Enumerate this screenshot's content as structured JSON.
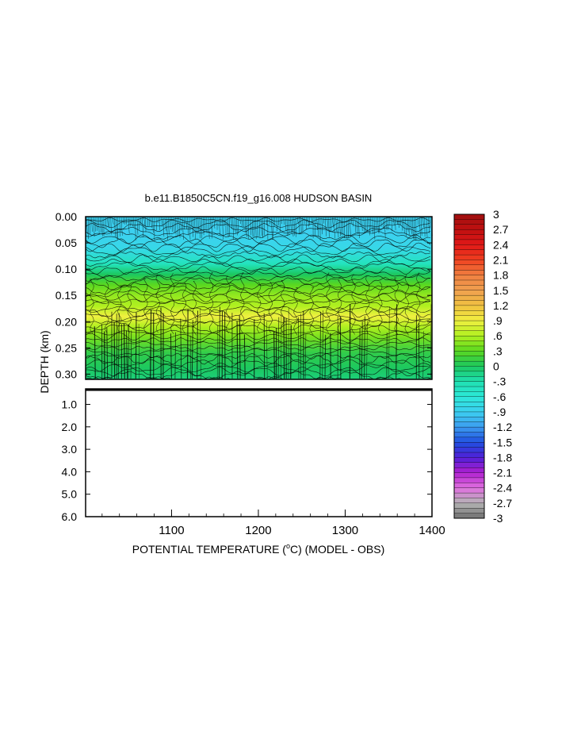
{
  "chart_data": {
    "type": "heatmap",
    "title": "b.e11.B1850C5CN.f19_g16.008 HUDSON BASIN",
    "xlabel_pre": "POTENTIAL TEMPERATURE (",
    "xlabel_sup": "o",
    "xlabel_post": "C) (MODEL - OBS)",
    "ylabel": "DEPTH (km)",
    "xlim": [
      1001,
      1400
    ],
    "x_ticks": [
      "1100",
      "1200",
      "1300",
      "1400"
    ],
    "x_tick_values": [
      1100,
      1200,
      1300,
      1400
    ],
    "upper_panel": {
      "ylim": [
        0.0,
        0.31
      ],
      "y_ticks": [
        "0.00",
        "0.05",
        "0.10",
        "0.15",
        "0.20",
        "0.25",
        "0.30"
      ],
      "y_tick_values": [
        0.0,
        0.05,
        0.1,
        0.15,
        0.2,
        0.25,
        0.3
      ]
    },
    "lower_panel": {
      "ylim": [
        0.31,
        6.0
      ],
      "y_ticks": [
        "1.0",
        "2.0",
        "3.0",
        "4.0",
        "5.0",
        "6.0"
      ],
      "y_tick_values": [
        1.0,
        2.0,
        3.0,
        4.0,
        5.0,
        6.0
      ]
    },
    "depth_profile": [
      {
        "depth": 0.0,
        "value": -0.9
      },
      {
        "depth": 0.03,
        "value": -0.9
      },
      {
        "depth": 0.06,
        "value": -0.8
      },
      {
        "depth": 0.09,
        "value": -0.4
      },
      {
        "depth": 0.11,
        "value": 0.0
      },
      {
        "depth": 0.13,
        "value": 0.3
      },
      {
        "depth": 0.15,
        "value": 0.5
      },
      {
        "depth": 0.17,
        "value": 0.6
      },
      {
        "depth": 0.19,
        "value": 0.9
      },
      {
        "depth": 0.21,
        "value": 0.6
      },
      {
        "depth": 0.23,
        "value": 0.4
      },
      {
        "depth": 0.26,
        "value": 0.1
      },
      {
        "depth": 0.29,
        "value": 0.0
      },
      {
        "depth": 0.31,
        "value": -0.1
      }
    ],
    "colorbar": {
      "min": -3,
      "max": 3,
      "labels": [
        "3",
        "2.7",
        "2.4",
        "2.1",
        "1.8",
        "1.5",
        "1.2",
        ".9",
        ".6",
        ".3",
        "0",
        "-.3",
        "-.6",
        "-.9",
        "-1.2",
        "-1.5",
        "-1.8",
        "-2.1",
        "-2.4",
        "-2.7",
        "-3"
      ],
      "label_values": [
        3,
        2.7,
        2.4,
        2.1,
        1.8,
        1.5,
        1.2,
        0.9,
        0.6,
        0.3,
        0,
        -0.3,
        -0.6,
        -0.9,
        -1.2,
        -1.5,
        -1.8,
        -2.1,
        -2.4,
        -2.7,
        -3
      ],
      "stops": [
        {
          "v": -3.0,
          "color": "#707070"
        },
        {
          "v": -2.7,
          "color": "#b4b4b4"
        },
        {
          "v": -2.4,
          "color": "#e070e0"
        },
        {
          "v": -2.1,
          "color": "#b020d0"
        },
        {
          "v": -1.8,
          "color": "#5020d8"
        },
        {
          "v": -1.5,
          "color": "#2050e0"
        },
        {
          "v": -1.2,
          "color": "#3c9cf0"
        },
        {
          "v": -0.9,
          "color": "#3cd0f0"
        },
        {
          "v": -0.6,
          "color": "#2ce8d8"
        },
        {
          "v": -0.3,
          "color": "#20e0b0"
        },
        {
          "v": 0.0,
          "color": "#1cc860"
        },
        {
          "v": 0.3,
          "color": "#5ad820"
        },
        {
          "v": 0.6,
          "color": "#b0f020"
        },
        {
          "v": 0.9,
          "color": "#f0f040"
        },
        {
          "v": 1.2,
          "color": "#f0c040"
        },
        {
          "v": 1.5,
          "color": "#f0a050"
        },
        {
          "v": 1.8,
          "color": "#f08040"
        },
        {
          "v": 2.1,
          "color": "#f04020"
        },
        {
          "v": 2.4,
          "color": "#e01818"
        },
        {
          "v": 2.7,
          "color": "#c01010"
        },
        {
          "v": 3.0,
          "color": "#a01010"
        }
      ]
    }
  }
}
